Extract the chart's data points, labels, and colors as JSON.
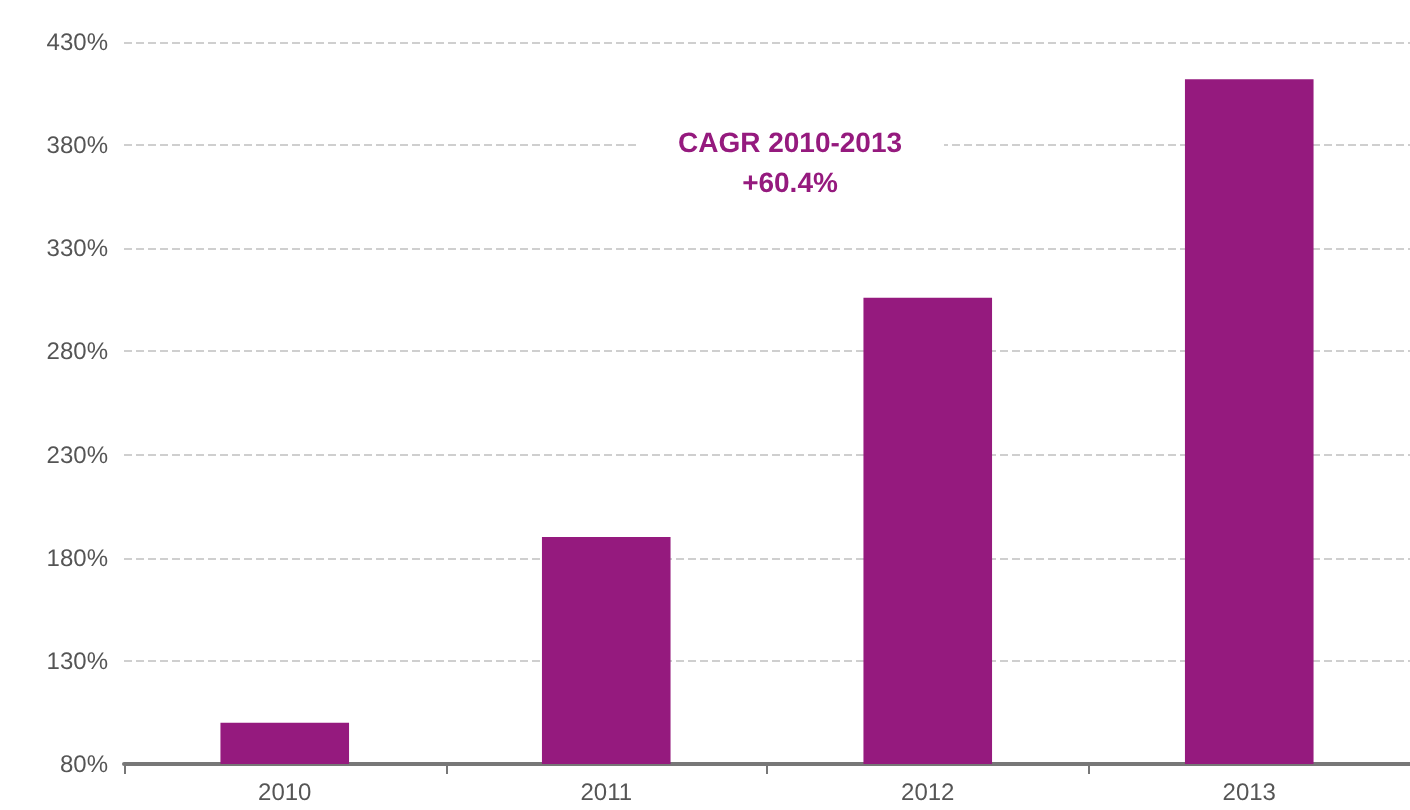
{
  "chart_data": {
    "type": "bar",
    "categories": [
      "2010",
      "2011",
      "2012",
      "2013"
    ],
    "values": [
      100,
      190,
      306,
      412
    ],
    "color": "#951a7e",
    "ylim": [
      80,
      430
    ],
    "yticks": [
      {
        "value": 80,
        "label": "80%"
      },
      {
        "value": 130,
        "label": "130%"
      },
      {
        "value": 180,
        "label": "180%"
      },
      {
        "value": 230,
        "label": "230%"
      },
      {
        "value": 280,
        "label": "280%"
      },
      {
        "value": 330,
        "label": "330%"
      },
      {
        "value": 380,
        "label": "380%"
      },
      {
        "value": 430,
        "label": "430%"
      }
    ],
    "grid": "y",
    "annotations": [
      "CAGR 2010-2013",
      "+60.4%"
    ]
  }
}
